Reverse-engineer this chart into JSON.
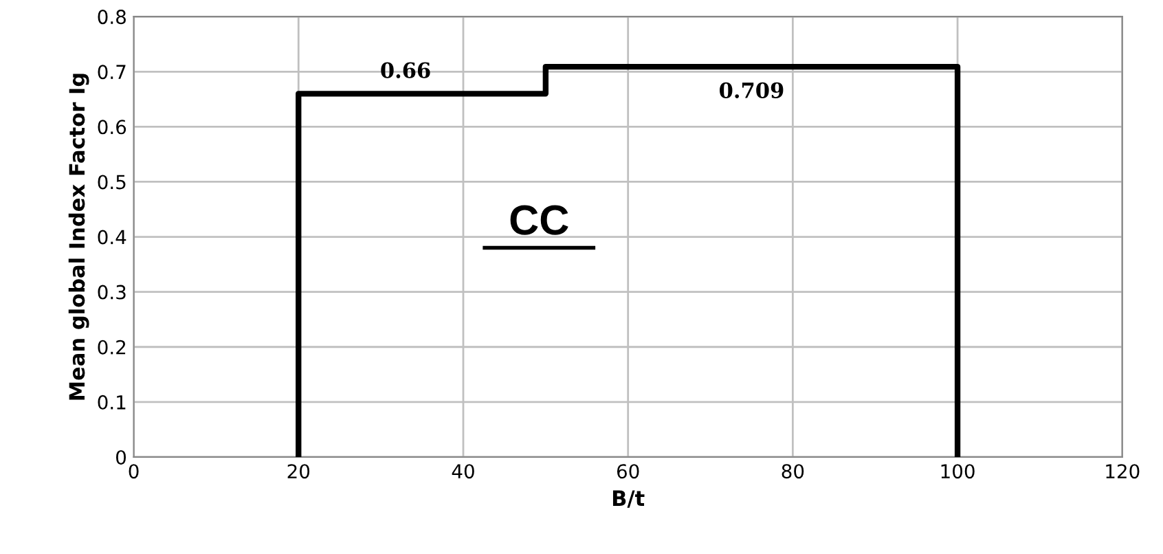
{
  "chart_data": {
    "type": "line",
    "xlabel": "B/t",
    "ylabel": "Mean global Index Factor Ig",
    "series": [
      {
        "color": "#000000",
        "x": [
          20,
          20,
          50,
          50,
          100,
          100
        ],
        "values": [
          0,
          0.66,
          0.66,
          0.709,
          0.709,
          0
        ]
      }
    ],
    "xlim": [
      0,
      120
    ],
    "xticks": [
      0,
      20,
      40,
      60,
      80,
      100,
      120
    ],
    "ylim": [
      0,
      0.8
    ],
    "yticks": [
      0,
      0.1,
      0.2,
      0.3,
      0.4,
      0.5,
      0.6,
      0.7,
      0.8
    ],
    "grid": true,
    "marker": "none",
    "line_style": "solid",
    "annotations": [
      {
        "text": "0.66",
        "x": 33,
        "y": 0.66
      },
      {
        "text": "0.709",
        "x": 75,
        "y": 0.709
      },
      "CC"
    ]
  }
}
